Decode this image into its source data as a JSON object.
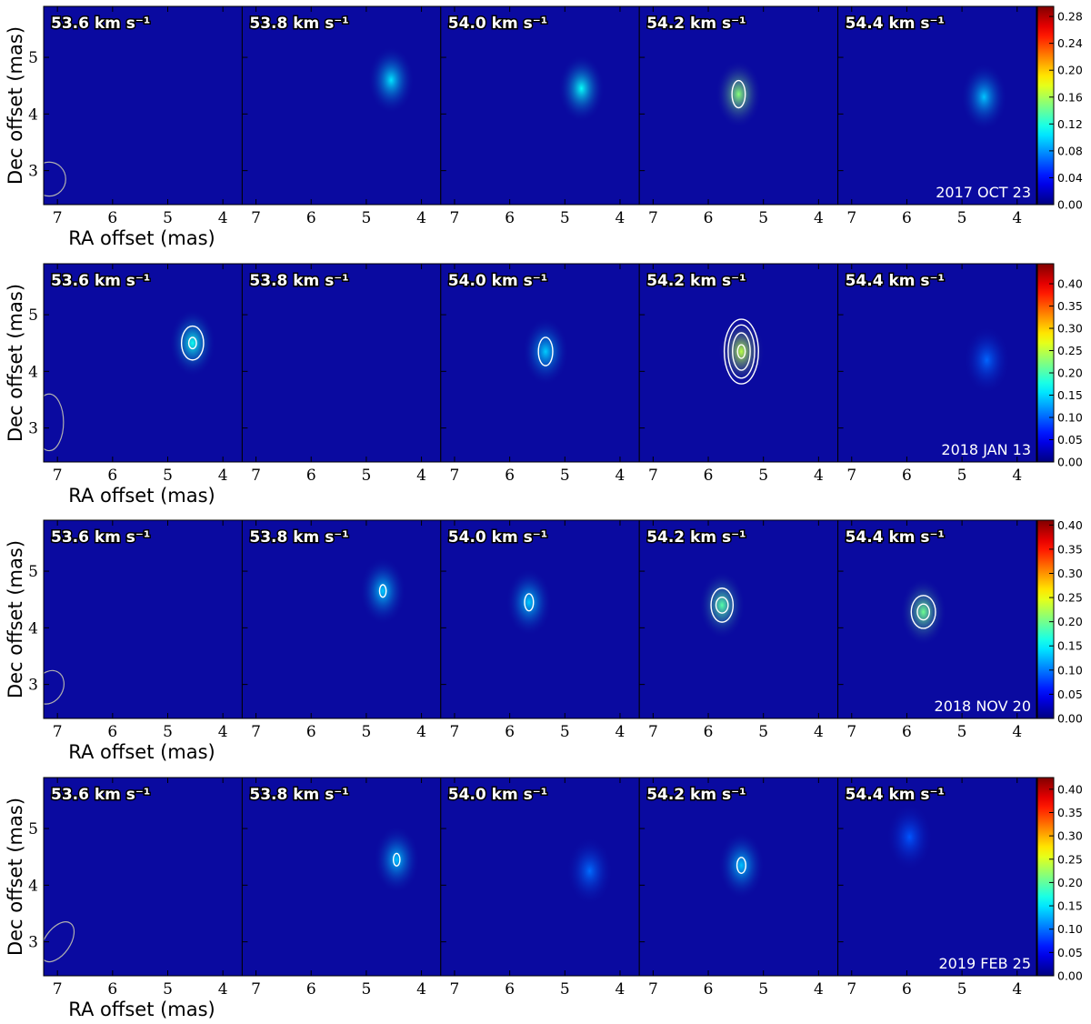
{
  "chart_data": {
    "type": "heatmap",
    "description_axes": {
      "xlabel": "RA offset (mas)",
      "ylabel": "Dec offset (mas)"
    },
    "channels": [
      "53.6 km s⁻¹",
      "53.8 km s⁻¹",
      "54.0 km s⁻¹",
      "54.2 km s⁻¹",
      "54.4 km s⁻¹"
    ],
    "channel_velocities_kms": [
      53.6,
      53.8,
      54.0,
      54.2,
      54.4
    ],
    "xlim": [
      7.25,
      3.65
    ],
    "ylim": [
      2.4,
      5.9
    ],
    "xticks": [
      7,
      6,
      5,
      4
    ],
    "yticks": [
      3,
      4,
      5
    ],
    "xlabel": "RA offset (mas)",
    "ylabel": "Dec offset (mas)",
    "colormap": "jet",
    "contour_color": "#ffffff",
    "background_color": "#0a0aa0",
    "rows": [
      {
        "epoch": "2017 OCT 23",
        "colorbar_ticks": [
          "0.00",
          "0.04",
          "0.08",
          "0.12",
          "0.16",
          "0.20",
          "0.24",
          "0.28"
        ],
        "colorbar_max": 0.295,
        "beam": {
          "ra": 7.15,
          "dec": 2.85,
          "major": 0.6,
          "minor": 0.6,
          "pa_deg": 0
        },
        "panels": [
          {
            "blobs": [],
            "contours": []
          },
          {
            "blobs": [
              {
                "ra": 4.55,
                "dec": 4.6,
                "peak": 0.08
              }
            ],
            "contours": []
          },
          {
            "blobs": [
              {
                "ra": 4.7,
                "dec": 4.45,
                "peak": 0.09
              }
            ],
            "contours": []
          },
          {
            "blobs": [
              {
                "ra": 5.45,
                "dec": 4.35,
                "peak": 0.13
              }
            ],
            "contours": [
              {
                "ra": 5.45,
                "dec": 4.35,
                "rx": 0.12,
                "ry": 0.24
              }
            ]
          },
          {
            "blobs": [
              {
                "ra": 4.6,
                "dec": 4.3,
                "peak": 0.07
              }
            ],
            "contours": []
          }
        ]
      },
      {
        "epoch": "2018 JAN 13",
        "colorbar_ticks": [
          "0.00",
          "0.05",
          "0.10",
          "0.15",
          "0.20",
          "0.25",
          "0.30",
          "0.35",
          "0.40"
        ],
        "colorbar_max": 0.445,
        "beam": {
          "ra": 7.15,
          "dec": 3.1,
          "major": 1.0,
          "minor": 0.52,
          "pa_deg": 0
        },
        "panels": [
          {
            "blobs": [
              {
                "ra": 4.55,
                "dec": 4.5,
                "peak": 0.14
              }
            ],
            "contours": [
              {
                "ra": 4.55,
                "dec": 4.5,
                "rx": 0.2,
                "ry": 0.3
              },
              {
                "ra": 4.55,
                "dec": 4.5,
                "rx": 0.07,
                "ry": 0.1
              }
            ]
          },
          {
            "blobs": [],
            "contours": []
          },
          {
            "blobs": [
              {
                "ra": 5.35,
                "dec": 4.35,
                "peak": 0.11
              }
            ],
            "contours": [
              {
                "ra": 5.35,
                "dec": 4.35,
                "rx": 0.13,
                "ry": 0.25
              }
            ]
          },
          {
            "blobs": [
              {
                "ra": 5.4,
                "dec": 4.35,
                "peak": 0.22
              }
            ],
            "contours": [
              {
                "ra": 5.4,
                "dec": 4.35,
                "rx": 0.31,
                "ry": 0.57
              },
              {
                "ra": 5.4,
                "dec": 4.35,
                "rx": 0.24,
                "ry": 0.47
              },
              {
                "ra": 5.4,
                "dec": 4.35,
                "rx": 0.16,
                "ry": 0.33
              },
              {
                "ra": 5.4,
                "dec": 4.35,
                "rx": 0.07,
                "ry": 0.12
              }
            ]
          },
          {
            "blobs": [
              {
                "ra": 4.55,
                "dec": 4.2,
                "peak": 0.06
              }
            ],
            "contours": []
          }
        ]
      },
      {
        "epoch": "2018 NOV 20",
        "colorbar_ticks": [
          "0.00",
          "0.05",
          "0.10",
          "0.15",
          "0.20",
          "0.25",
          "0.30",
          "0.35",
          "0.40"
        ],
        "colorbar_max": 0.41,
        "beam": {
          "ra": 7.15,
          "dec": 2.95,
          "major": 0.62,
          "minor": 0.5,
          "pa_deg": 30
        },
        "panels": [
          {
            "blobs": [],
            "contours": []
          },
          {
            "blobs": [
              {
                "ra": 4.7,
                "dec": 4.65,
                "peak": 0.1
              }
            ],
            "contours": [
              {
                "ra": 4.7,
                "dec": 4.65,
                "rx": 0.06,
                "ry": 0.11
              }
            ]
          },
          {
            "blobs": [
              {
                "ra": 5.65,
                "dec": 4.45,
                "peak": 0.1
              }
            ],
            "contours": [
              {
                "ra": 5.65,
                "dec": 4.45,
                "rx": 0.08,
                "ry": 0.15
              }
            ]
          },
          {
            "blobs": [
              {
                "ra": 5.75,
                "dec": 4.4,
                "peak": 0.16
              }
            ],
            "contours": [
              {
                "ra": 5.75,
                "dec": 4.4,
                "rx": 0.2,
                "ry": 0.3
              },
              {
                "ra": 5.75,
                "dec": 4.4,
                "rx": 0.11,
                "ry": 0.14
              }
            ]
          },
          {
            "blobs": [
              {
                "ra": 5.7,
                "dec": 4.28,
                "peak": 0.17
              }
            ],
            "contours": [
              {
                "ra": 5.7,
                "dec": 4.28,
                "rx": 0.22,
                "ry": 0.29
              },
              {
                "ra": 5.7,
                "dec": 4.28,
                "rx": 0.11,
                "ry": 0.14
              }
            ]
          }
        ]
      },
      {
        "epoch": "2019 FEB 25",
        "colorbar_ticks": [
          "0.00",
          "0.05",
          "0.10",
          "0.15",
          "0.20",
          "0.25",
          "0.30",
          "0.35",
          "0.40"
        ],
        "colorbar_max": 0.425,
        "beam": {
          "ra": 7.0,
          "dec": 3.0,
          "major": 0.8,
          "minor": 0.46,
          "pa_deg": 35
        },
        "panels": [
          {
            "blobs": [],
            "contours": []
          },
          {
            "blobs": [
              {
                "ra": 4.45,
                "dec": 4.45,
                "peak": 0.1
              }
            ],
            "contours": [
              {
                "ra": 4.45,
                "dec": 4.45,
                "rx": 0.06,
                "ry": 0.11
              }
            ]
          },
          {
            "blobs": [
              {
                "ra": 4.55,
                "dec": 4.25,
                "peak": 0.06
              }
            ],
            "contours": []
          },
          {
            "blobs": [
              {
                "ra": 5.4,
                "dec": 4.35,
                "peak": 0.1
              }
            ],
            "contours": [
              {
                "ra": 5.4,
                "dec": 4.35,
                "rx": 0.08,
                "ry": 0.14
              }
            ]
          },
          {
            "blobs": [
              {
                "ra": 5.95,
                "dec": 4.85,
                "peak": 0.05
              }
            ],
            "contours": []
          }
        ]
      }
    ]
  }
}
